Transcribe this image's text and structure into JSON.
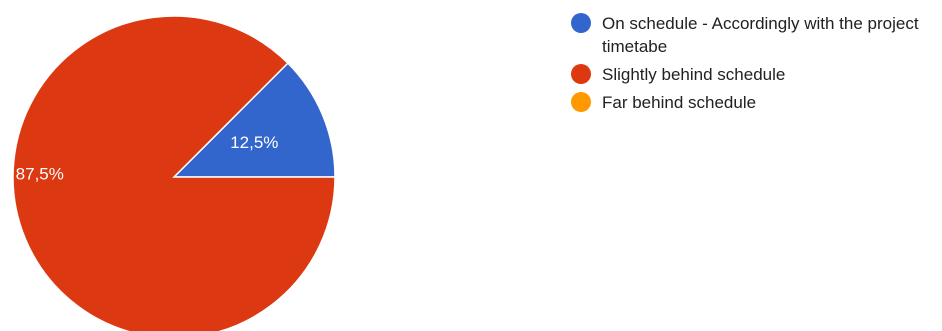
{
  "chart_data": {
    "type": "pie",
    "title": "",
    "slices": [
      {
        "name": "On schedule - Accordingly with the project timetabe",
        "value": 12.5,
        "label": "12,5%",
        "color": "#3366cc"
      },
      {
        "name": "Slightly behind schedule",
        "value": 87.5,
        "label": "87,5%",
        "color": "#dc3912"
      },
      {
        "name": "Far behind schedule",
        "value": 0,
        "label": "",
        "color": "#ff9900"
      }
    ],
    "legend_position": "right"
  }
}
